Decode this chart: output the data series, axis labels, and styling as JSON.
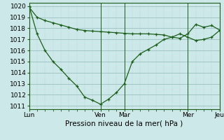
{
  "line1_x": [
    0,
    1,
    2,
    3,
    4,
    5,
    6,
    7,
    8,
    9,
    10,
    11,
    12,
    13,
    14,
    15,
    16,
    17,
    18,
    19,
    20,
    21,
    22,
    23,
    24
  ],
  "line1_y": [
    1019.9,
    1019.0,
    1018.7,
    1018.5,
    1018.3,
    1018.1,
    1017.9,
    1017.8,
    1017.75,
    1017.7,
    1017.65,
    1017.6,
    1017.55,
    1017.5,
    1017.5,
    1017.5,
    1017.45,
    1017.4,
    1017.2,
    1017.1,
    1017.5,
    1018.35,
    1018.1,
    1018.25,
    1017.85
  ],
  "line2_x": [
    0,
    1,
    2,
    3,
    4,
    5,
    6,
    7,
    8,
    9,
    10,
    11,
    12,
    13,
    14,
    15,
    16,
    17,
    18,
    19,
    20,
    21,
    22,
    23,
    24
  ],
  "line2_y": [
    1020.0,
    1017.5,
    1016.0,
    1015.0,
    1014.3,
    1013.5,
    1012.8,
    1011.8,
    1011.5,
    1011.15,
    1011.6,
    1012.2,
    1013.0,
    1015.0,
    1015.7,
    1016.1,
    1016.5,
    1017.0,
    1017.2,
    1017.5,
    1017.2,
    1016.9,
    1017.0,
    1017.2,
    1017.8
  ],
  "bg_color": "#cde8e8",
  "grid_major_color": "#9bbfbf",
  "grid_minor_color": "#b8d8d8",
  "line_color": "#1a5e1a",
  "xlabel": "Pression niveau de la mer( hPa )",
  "ylim_min": 1011,
  "ylim_max": 1020,
  "yticks": [
    1011,
    1012,
    1013,
    1014,
    1015,
    1016,
    1017,
    1018,
    1019,
    1020
  ],
  "xtick_positions": [
    0,
    9,
    12,
    20,
    24
  ],
  "xtick_labels": [
    "Lun",
    "Ven",
    "Mar",
    "Mer",
    "Jeu"
  ],
  "axis_fontsize": 6.5,
  "xlabel_fontsize": 7.5
}
